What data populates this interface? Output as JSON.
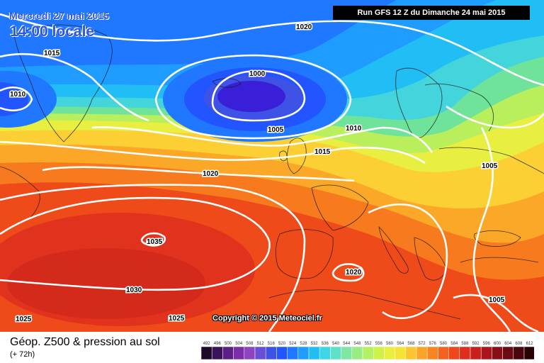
{
  "title": {
    "date": "Mercredi 27 mai 2015",
    "time": "14:00 locale"
  },
  "run_info": "Run GFS 12 Z du Dimanche 24 mai 2015",
  "copyright": "Copyright © 2015 Meteociel.fr",
  "legend": {
    "title": "Géop. Z500 & pression au sol",
    "subtitle": "(+ 72h)",
    "scale_values": [
      "492",
      "496",
      "500",
      "504",
      "508",
      "512",
      "516",
      "520",
      "524",
      "528",
      "532",
      "536",
      "540",
      "544",
      "548",
      "552",
      "556",
      "560",
      "564",
      "568",
      "572",
      "576",
      "580",
      "584",
      "588",
      "592",
      "596",
      "600",
      "604",
      "608",
      "612"
    ],
    "scale_colors": [
      "#1c0a28",
      "#3a1458",
      "#5c1f86",
      "#7b2ea8",
      "#8e44bf",
      "#6a4fd6",
      "#3f52e6",
      "#2255ff",
      "#1f78ff",
      "#1e9cff",
      "#21bef5",
      "#3cd6e8",
      "#5fe0c8",
      "#7fe6a4",
      "#99ec82",
      "#b4f064",
      "#cff14c",
      "#e8ef3c",
      "#f8e236",
      "#fcc42e",
      "#fba428",
      "#f98422",
      "#f4621e",
      "#ef461c",
      "#e02e1c",
      "#c81e1c",
      "#aa141a",
      "#8a0e16",
      "#6a0a12",
      "#4a060c",
      "#2a0206"
    ]
  },
  "isobars": {
    "p1020_top": "1020",
    "p1015_left": "1015",
    "p1010_left": "1010",
    "p1000": "1000",
    "p1005_mid": "1005",
    "p1010_right": "1010",
    "p1015_right": "1015",
    "p1020_mid": "1020",
    "p1005_east": "1005",
    "p1035": "1035",
    "p1030": "1030",
    "p1025_left": "1025",
    "p1025_bottom": "1025",
    "p1020_med": "1020",
    "p1005_se": "1005"
  }
}
